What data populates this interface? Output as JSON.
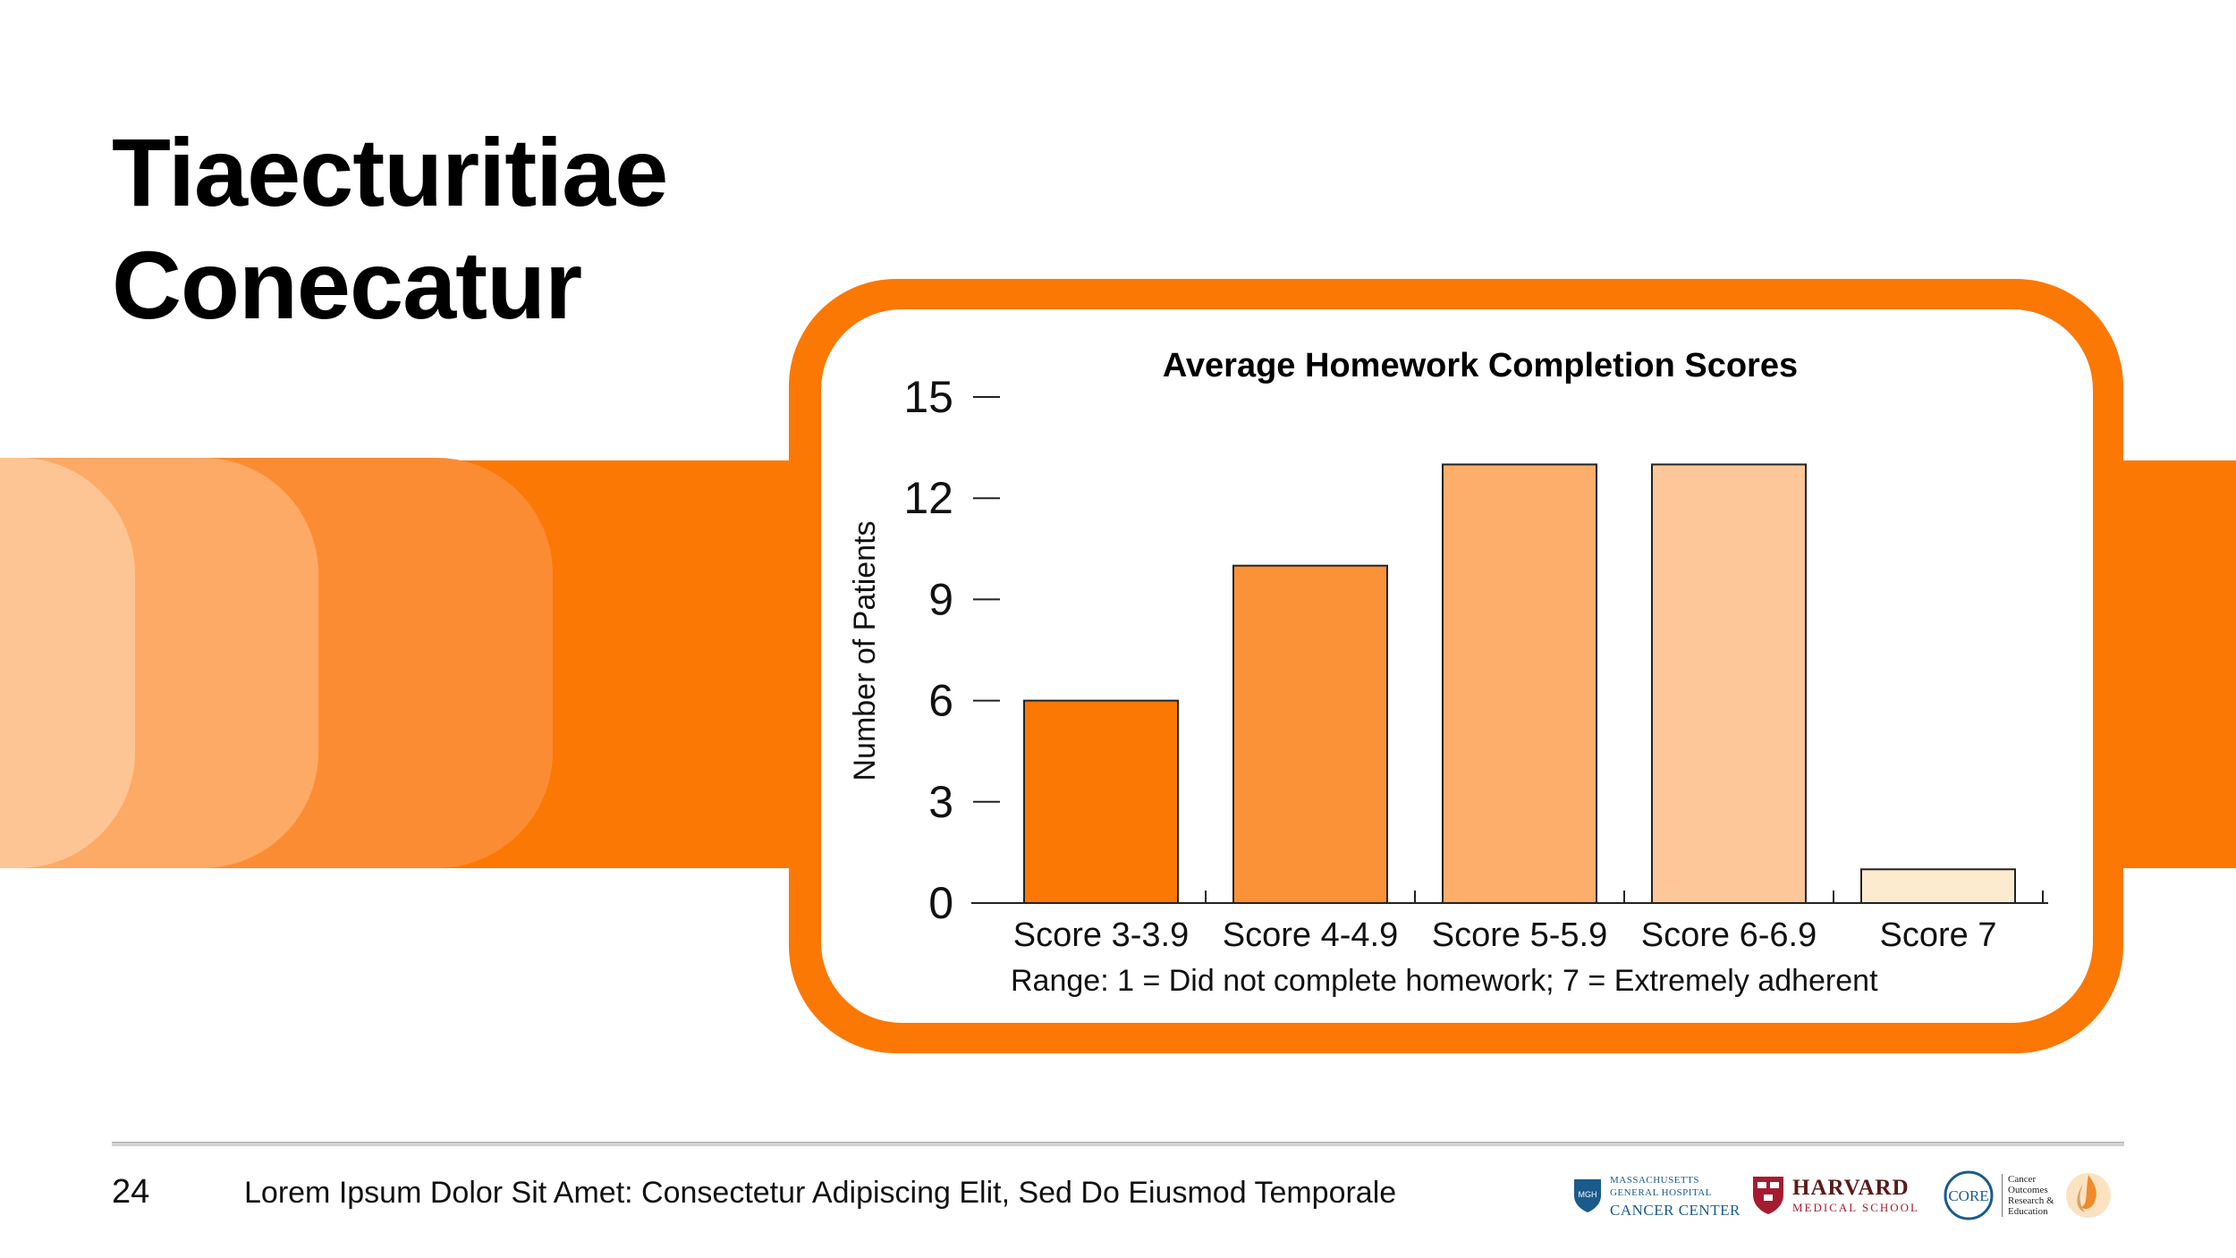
{
  "slide": {
    "title_line1": "Tiaecturitiae",
    "title_line2": "Conecatur",
    "page_number": "24",
    "footer_text": "Lorem Ipsum Dolor Sit Amet: Consectetur Adipiscing Elit, Sed Do Eiusmod Temporale"
  },
  "colors": {
    "accent": "#fb7805",
    "bar_shades": [
      "#fb7805",
      "#fc9238",
      "#fdae6b",
      "#fec79a",
      "#fdebcf"
    ]
  },
  "chart_data": {
    "type": "bar",
    "title": "Average Homework Completion Scores",
    "ylabel": "Number of Patients",
    "xlabel": "",
    "categories": [
      "Score 3-3.9",
      "Score 4-4.9",
      "Score 5-5.9",
      "Score 6-6.9",
      "Score 7"
    ],
    "values": [
      6,
      10,
      13,
      13,
      1
    ],
    "ylim": [
      0,
      15
    ],
    "yticks": [
      0,
      3,
      6,
      9,
      12,
      15
    ],
    "note": "Range: 1 = Did not complete homework; 7 = Extremely adherent",
    "grid": false,
    "legend": "none"
  },
  "logos": {
    "mgh_line1": "MASSACHUSETTS",
    "mgh_line2": "GENERAL HOSPITAL",
    "mgh_line3": "CANCER CENTER",
    "harvard_line1": "HARVARD",
    "harvard_line2": "MEDICAL SCHOOL",
    "core_badge": "CORE",
    "core_line1": "Cancer",
    "core_line2": "Outcomes",
    "core_line3": "Research &",
    "core_line4": "Education"
  }
}
